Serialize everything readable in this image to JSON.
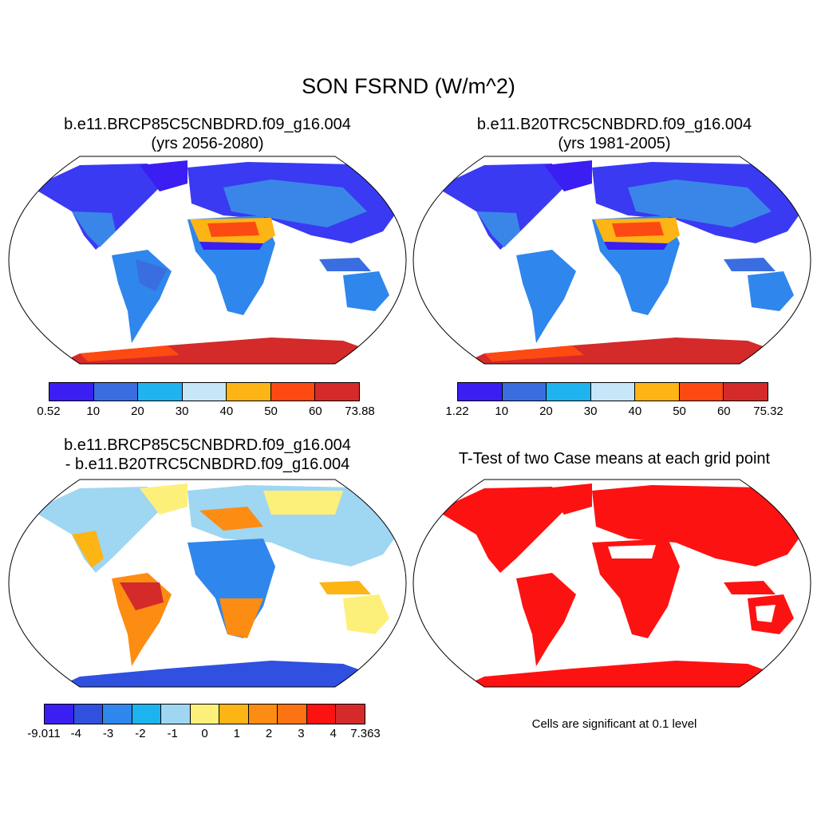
{
  "main_title": "SON FSRND (W/m^2)",
  "panels": [
    {
      "title_line1": "b.e11.BRCP85C5CNBDRD.f09_g16.004",
      "title_line2": "(yrs 2056-2080)",
      "colorbar": {
        "colors": [
          "#3a1ef2",
          "#3a6de0",
          "#1fb4f0",
          "#c7e6f8",
          "#fdb415",
          "#fd4a12",
          "#d42a2a"
        ],
        "labels": [
          "0.52",
          "10",
          "20",
          "30",
          "40",
          "50",
          "60",
          "73.88"
        ]
      }
    },
    {
      "title_line1": "b.e11.B20TRC5CNBDRD.f09_g16.004",
      "title_line2": "(yrs 1981-2005)",
      "colorbar": {
        "colors": [
          "#3a1ef2",
          "#3a6de0",
          "#1fb4f0",
          "#c7e6f8",
          "#fdb415",
          "#fd4a12",
          "#d42a2a"
        ],
        "labels": [
          "1.22",
          "10",
          "20",
          "30",
          "40",
          "50",
          "60",
          "75.32"
        ]
      }
    },
    {
      "title_line1": "b.e11.BRCP85C5CNBDRD.f09_g16.004",
      "title_line2": "- b.e11.B20TRC5CNBDRD.f09_g16.004",
      "colorbar": {
        "colors": [
          "#3a1ef2",
          "#3050e0",
          "#2f86ec",
          "#1db3ef",
          "#9fd6f2",
          "#fdf07a",
          "#fdb415",
          "#fd8c12",
          "#fd7212",
          "#fd1212",
          "#d42a2a"
        ],
        "labels": [
          "-9.011",
          "-4",
          "-3",
          "-2",
          "-1",
          "0",
          "1",
          "2",
          "3",
          "4",
          "7.363"
        ]
      }
    },
    {
      "title_line1": "T-Test of two Case means at each grid point",
      "note": "Cells are significant at 0.1 level"
    }
  ]
}
